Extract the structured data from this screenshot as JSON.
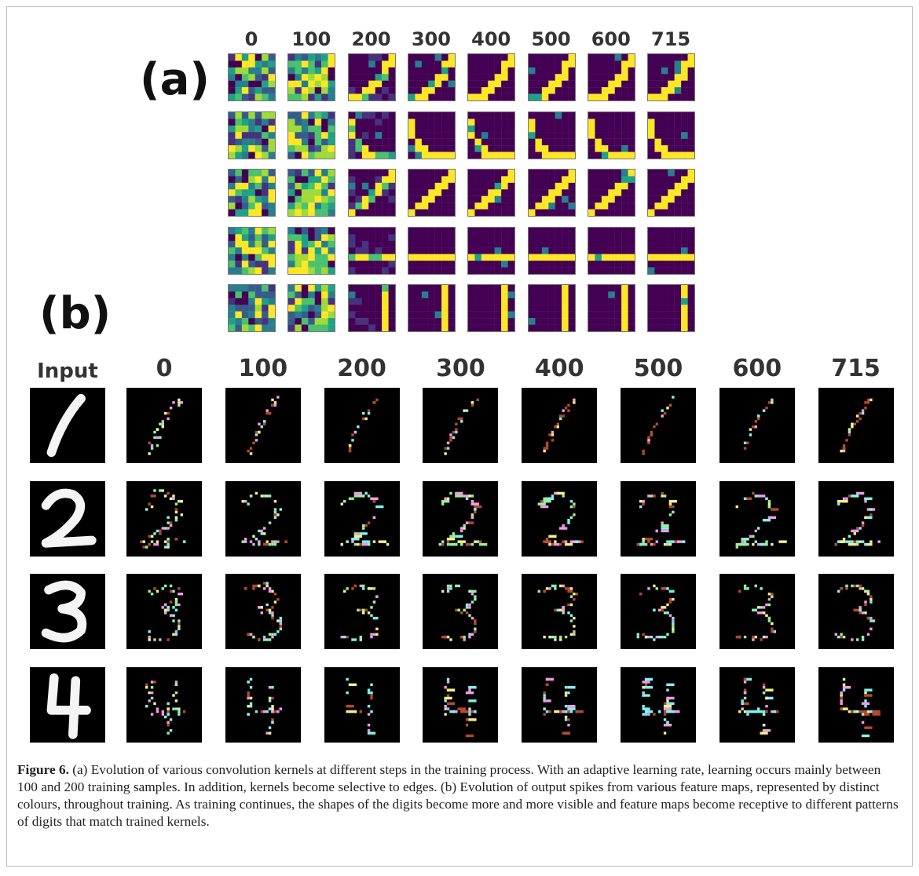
{
  "panel_a_label": "(a)",
  "panel_b_label": "(b)",
  "kernel_steps": [
    "0",
    "100",
    "200",
    "300",
    "400",
    "500",
    "600",
    "715"
  ],
  "spike_steps": [
    "0",
    "100",
    "200",
    "300",
    "400",
    "500",
    "600",
    "715"
  ],
  "input_label": "Input",
  "kernel_rows": [
    "diagonal-corner",
    "lower-left-corner",
    "diagonal",
    "horizontal-bar",
    "vertical-bar"
  ],
  "digits": [
    "1",
    "2",
    "3",
    "4"
  ],
  "colors": {
    "viridis_dark": "#440154",
    "viridis_yellow": "#fde725",
    "spike_red": "#b5482e",
    "spike_cyan": "#7ff3ef",
    "spike_pink": "#f39ae8",
    "spike_yellow": "#f4f08a",
    "spike_green": "#9af09a"
  },
  "caption": {
    "label": "Figure 6.",
    "text": " (a) Evolution of various convolution kernels at different steps in the training process. With an adaptive learning rate, learning occurs mainly between 100 and 200 training samples. In addition, kernels become selective to edges. (b) Evolution of output spikes from various feature maps, represented by distinct colours, throughout training. As training continues, the shapes of the digits become more and more visible and feature maps become receptive to different patterns of digits that match trained kernels."
  }
}
